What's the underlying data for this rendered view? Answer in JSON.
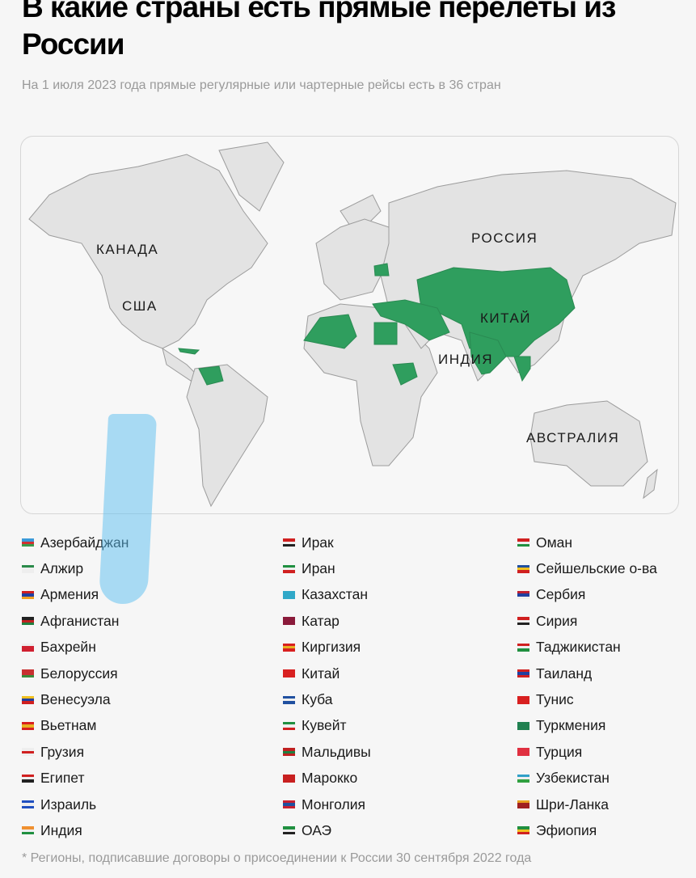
{
  "title": "В какие страны есть прямые перелеты из России",
  "subtitle": "На 1 июля 2023 года прямые регулярные или чартерные рейсы есть в 36 стран",
  "map": {
    "labels": {
      "canada": "КАНАДА",
      "usa": "США",
      "russia": "РОССИЯ",
      "china": "КИТАЙ",
      "india": "ИНДИЯ",
      "australia": "АВСТРАЛИЯ"
    },
    "colors": {
      "highlight": "#2f9e5e",
      "land": "#e3e3e3",
      "border": "#9c9c9c"
    }
  },
  "legend": {
    "columns": [
      [
        {
          "name": "Азербайджан",
          "flag": [
            "#3a9ad9",
            "#d03030",
            "#3a9a4a"
          ]
        },
        {
          "name": "Алжир",
          "flag": [
            "#2a8a4a",
            "#eeeeee",
            "#eeeeee"
          ]
        },
        {
          "name": "Армения",
          "flag": [
            "#d02020",
            "#2040a0",
            "#f0a020"
          ]
        },
        {
          "name": "Афганистан",
          "flag": [
            "#222222",
            "#c02020",
            "#208040"
          ]
        },
        {
          "name": "Бахрейн",
          "flag": [
            "#eeeeee",
            "#d02030",
            "#d02030"
          ]
        },
        {
          "name": "Белоруссия",
          "flag": [
            "#c83030",
            "#c83030",
            "#3a8a3a"
          ]
        },
        {
          "name": "Венесуэла",
          "flag": [
            "#f0c020",
            "#2040a0",
            "#d02020"
          ]
        },
        {
          "name": "Вьетнам",
          "flag": [
            "#d82020",
            "#e8b020",
            "#d82020"
          ]
        },
        {
          "name": "Грузия",
          "flag": [
            "#eeeeee",
            "#d02020",
            "#eeeeee"
          ]
        },
        {
          "name": "Египет",
          "flag": [
            "#d02020",
            "#eeeeee",
            "#222222"
          ]
        },
        {
          "name": "Израиль",
          "flag": [
            "#2050c0",
            "#eeeeee",
            "#2050c0"
          ]
        },
        {
          "name": "Индия",
          "flag": [
            "#f09030",
            "#eeeeee",
            "#209040"
          ]
        }
      ],
      [
        {
          "name": "Ирак",
          "flag": [
            "#d02020",
            "#eeeeee",
            "#222222"
          ]
        },
        {
          "name": "Иран",
          "flag": [
            "#209040",
            "#eeeeee",
            "#d02020"
          ]
        },
        {
          "name": "Казахстан",
          "flag": [
            "#30a8c8",
            "#30a8c8",
            "#30a8c8"
          ]
        },
        {
          "name": "Катар",
          "flag": [
            "#8a1a3a",
            "#8a1a3a",
            "#8a1a3a"
          ]
        },
        {
          "name": "Киргизия",
          "flag": [
            "#d82020",
            "#e8b020",
            "#d82020"
          ]
        },
        {
          "name": "Китай",
          "flag": [
            "#d82020",
            "#d82020",
            "#d82020"
          ]
        },
        {
          "name": "Куба",
          "flag": [
            "#2050a0",
            "#eeeeee",
            "#2050a0"
          ]
        },
        {
          "name": "Кувейт",
          "flag": [
            "#209040",
            "#eeeeee",
            "#d02020"
          ]
        },
        {
          "name": "Мальдивы",
          "flag": [
            "#c02020",
            "#208040",
            "#c02020"
          ]
        },
        {
          "name": "Марокко",
          "flag": [
            "#c82020",
            "#c82020",
            "#c82020"
          ]
        },
        {
          "name": "Монголия",
          "flag": [
            "#c82030",
            "#2050a0",
            "#c82030"
          ]
        },
        {
          "name": "ОАЭ",
          "flag": [
            "#209040",
            "#eeeeee",
            "#222222"
          ]
        }
      ],
      [
        {
          "name": "Оман",
          "flag": [
            "#d02020",
            "#eeeeee",
            "#209040"
          ]
        },
        {
          "name": "Сейшельские о-ва",
          "flag": [
            "#2050a0",
            "#f0c020",
            "#d02020"
          ]
        },
        {
          "name": "Сербия",
          "flag": [
            "#c02030",
            "#2040a0",
            "#eeeeee"
          ]
        },
        {
          "name": "Сирия",
          "flag": [
            "#d02020",
            "#eeeeee",
            "#222222"
          ]
        },
        {
          "name": "Таджикистан",
          "flag": [
            "#d02020",
            "#eeeeee",
            "#209040"
          ]
        },
        {
          "name": "Таиланд",
          "flag": [
            "#d02020",
            "#2040a0",
            "#d02020"
          ]
        },
        {
          "name": "Тунис",
          "flag": [
            "#d82020",
            "#d82020",
            "#d82020"
          ]
        },
        {
          "name": "Туркмения",
          "flag": [
            "#208050",
            "#208050",
            "#208050"
          ]
        },
        {
          "name": "Турция",
          "flag": [
            "#e03040",
            "#e03040",
            "#e03040"
          ]
        },
        {
          "name": "Узбекистан",
          "flag": [
            "#30a0c8",
            "#eeeeee",
            "#30a040"
          ]
        },
        {
          "name": "Шри-Ланка",
          "flag": [
            "#e8a020",
            "#a02020",
            "#a02020"
          ]
        },
        {
          "name": "Эфиопия",
          "flag": [
            "#209040",
            "#f0c020",
            "#d02020"
          ]
        }
      ]
    ]
  },
  "footnote": "* Регионы, подписавшие договоры о присоединении к России 30 сентября 2022 года"
}
